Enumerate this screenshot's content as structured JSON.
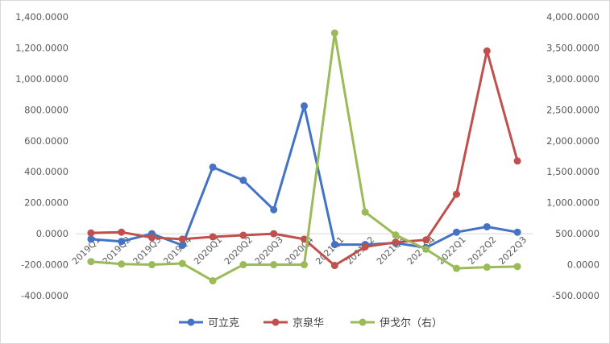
{
  "chart_data": {
    "type": "line",
    "title": "",
    "xlabel": "",
    "ylabel": "",
    "categories": [
      "2019Q1",
      "2019Q2",
      "2019Q3",
      "2019Q4",
      "2020Q1",
      "2020Q2",
      "2020Q3",
      "2020Q4",
      "2021Q1",
      "2021Q2",
      "2021Q3",
      "2021Q4",
      "2022Q1",
      "2022Q2",
      "2022Q3"
    ],
    "y_left": {
      "min": -400,
      "max": 1400,
      "step": 200,
      "tick_labels": [
        "-400.0000",
        "-200.0000",
        "0.0000",
        "200.0000",
        "400.0000",
        "600.0000",
        "800.0000",
        "1,000.0000",
        "1,200.0000",
        "1,400.0000"
      ]
    },
    "y_right": {
      "min": -500,
      "max": 4000,
      "step": 500,
      "tick_labels": [
        "-500.0000",
        "0.0000",
        "500.0000",
        "1,000.0000",
        "1,500.0000",
        "2,000.0000",
        "2,500.0000",
        "3,000.0000",
        "3,500.0000",
        "4,000.0000"
      ]
    },
    "grid": false,
    "legend_position": "bottom",
    "series": [
      {
        "name": "可立克",
        "axis": "left",
        "color": "#4472C4",
        "values": [
          -35,
          -50,
          0,
          -75,
          430,
          345,
          155,
          825,
          -70,
          -70,
          -60,
          -90,
          10,
          45,
          10
        ]
      },
      {
        "name": "京泉华",
        "axis": "left",
        "color": "#C0504D",
        "values": [
          5,
          10,
          -25,
          -35,
          -20,
          -10,
          0,
          -35,
          -205,
          -85,
          -55,
          -40,
          255,
          1180,
          470
        ]
      },
      {
        "name": "伊戈尔（右）",
        "axis": "right",
        "color": "#9BBB59",
        "values": [
          50,
          10,
          0,
          20,
          -260,
          0,
          0,
          0,
          3740,
          850,
          480,
          250,
          -60,
          -40,
          -30
        ]
      }
    ]
  }
}
